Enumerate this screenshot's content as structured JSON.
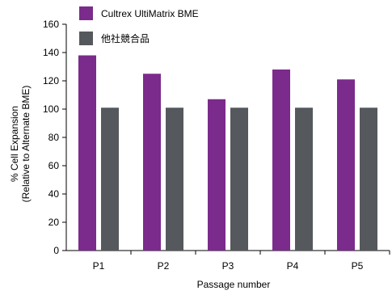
{
  "chart_data": {
    "type": "bar",
    "categories": [
      "P1",
      "P2",
      "P3",
      "P4",
      "P5"
    ],
    "series": [
      {
        "name": "Cultrex UltiMatrix BME",
        "color": "#7b2b8b",
        "values": [
          138,
          125,
          107,
          128,
          121
        ]
      },
      {
        "name": "他社競合品",
        "color": "#55585d",
        "values": [
          101,
          101,
          101,
          101,
          101
        ]
      }
    ],
    "title": "",
    "xlabel": "Passage number",
    "ylabel": [
      "% Cell Expansion",
      "(Relative to Alternate BME)"
    ],
    "ylim": [
      0,
      160
    ],
    "yticks": [
      0,
      20,
      40,
      60,
      80,
      100,
      120,
      140,
      160
    ],
    "grid": false,
    "legend_position": "top-left"
  }
}
